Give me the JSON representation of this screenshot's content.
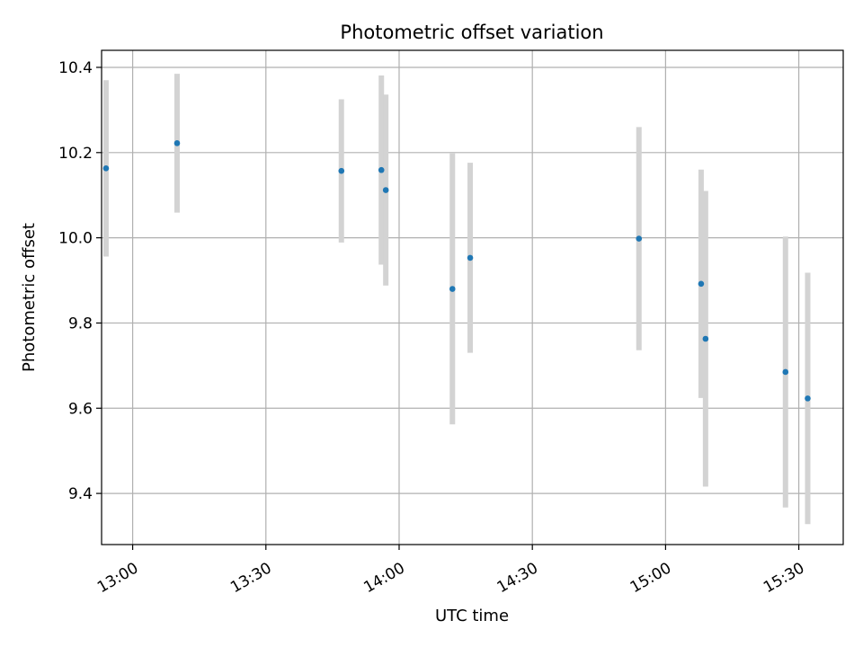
{
  "chart_data": {
    "type": "scatter",
    "title": "Photometric offset variation",
    "xlabel": "UTC time",
    "ylabel": "Photometric offset",
    "grid": true,
    "xlim": [
      "12:53",
      "15:40"
    ],
    "ylim": [
      9.28,
      10.44
    ],
    "x_ticks": [
      "13:00",
      "13:30",
      "14:00",
      "14:30",
      "15:00",
      "15:30"
    ],
    "y_ticks": [
      9.4,
      9.6,
      9.8,
      10.0,
      10.2,
      10.4
    ],
    "y_tick_labels": [
      "9.4",
      "9.6",
      "9.8",
      "10.0",
      "10.2",
      "10.4"
    ],
    "colors": {
      "point": "#1f77b4",
      "errorbar": "#d3d3d3",
      "grid": "#b0b0b0"
    },
    "points": [
      {
        "time": "12:54",
        "y": 10.163,
        "err": 0.207
      },
      {
        "time": "13:10",
        "y": 10.222,
        "err": 0.163
      },
      {
        "time": "13:47",
        "y": 10.157,
        "err": 0.168
      },
      {
        "time": "13:56",
        "y": 10.159,
        "err": 0.222
      },
      {
        "time": "13:57",
        "y": 10.112,
        "err": 0.224
      },
      {
        "time": "14:12",
        "y": 9.88,
        "err": 0.318
      },
      {
        "time": "14:16",
        "y": 9.953,
        "err": 0.223
      },
      {
        "time": "14:54",
        "y": 9.998,
        "err": 0.262
      },
      {
        "time": "15:08",
        "y": 9.892,
        "err": 0.268
      },
      {
        "time": "15:09",
        "y": 9.763,
        "err": 0.347
      },
      {
        "time": "15:27",
        "y": 9.685,
        "err": 0.318
      },
      {
        "time": "15:32",
        "y": 9.623,
        "err": 0.295
      }
    ]
  }
}
